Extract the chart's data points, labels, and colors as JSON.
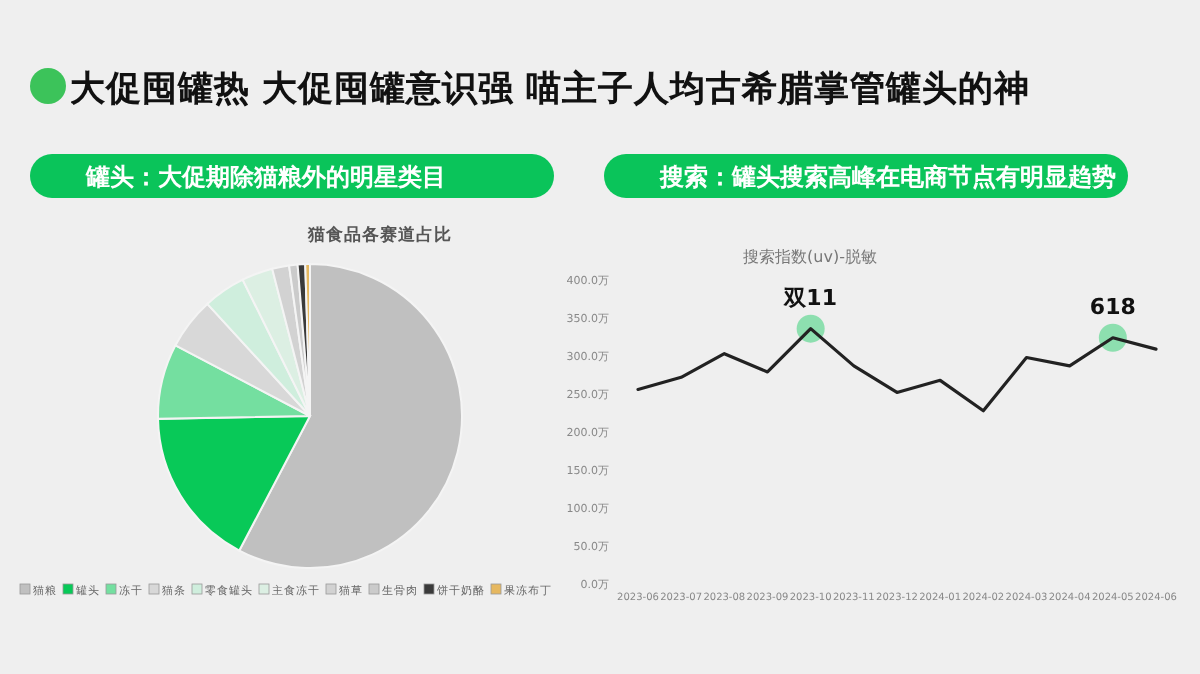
{
  "chart_data": [
    {
      "type": "pie",
      "title": "罐头：大促期除猫粮外的明星类目",
      "subtitle": "猫食品各赛道占比",
      "annotations": [
        "大促囤罐热 大促囤罐意识强 喵主子人均古希腊掌管罐头的神"
      ],
      "categories": [
        "猫粮",
        "罐头",
        "冻干",
        "猫条",
        "零食罐头",
        "主食冻干",
        "猫草",
        "生骨肉",
        "饼干奶酪",
        "果冻布丁"
      ],
      "values": [
        57.7,
        17,
        8,
        5.5,
        4.5,
        3.3,
        1.8,
        0.9,
        0.8,
        0.5
      ],
      "colors": [
        "#c0c0c0",
        "#08c958",
        "#74dfa0",
        "#d8d8d8",
        "#cfeedd",
        "#dcefe3",
        "#d2d2d2",
        "#cbcbcb",
        "#3a3a3a",
        "#e6b860"
      ],
      "legend": "bottom"
    },
    {
      "type": "line",
      "title": "搜索：罐头搜索高峰在电商节点有明显趋势",
      "subtitle": "搜索指数(uv)-脱敏",
      "categories": [
        "2023-06",
        "2023-07",
        "2023-08",
        "2023-09",
        "2023-10",
        "2023-11",
        "2023-12",
        "2024-01",
        "2024-02",
        "2024-03",
        "2024-04",
        "2024-05",
        "2024-06"
      ],
      "series": [
        {
          "color": "#222222",
          "values": [
            256,
            272,
            303,
            279,
            336,
            287,
            252,
            268,
            228,
            298,
            287,
            324,
            309
          ]
        }
      ],
      "ylim": [
        0,
        400
      ],
      "yticks": [
        {
          "value": 0,
          "label": "0.0万"
        },
        {
          "value": 50,
          "label": "50.0万"
        },
        {
          "value": 100,
          "label": "100.0万"
        },
        {
          "value": 150,
          "label": "150.0万"
        },
        {
          "value": 200,
          "label": "200.0万"
        },
        {
          "value": 250,
          "label": "250.0万"
        },
        {
          "value": 300,
          "label": "300.0万"
        },
        {
          "value": 350,
          "label": "350.0万"
        },
        {
          "value": 400,
          "label": "400.0万"
        }
      ],
      "annotations": [
        {
          "text": "双11",
          "x": "2023-10",
          "y": 336
        },
        {
          "text": "618",
          "x": "2024-05",
          "y": 324
        }
      ]
    }
  ]
}
